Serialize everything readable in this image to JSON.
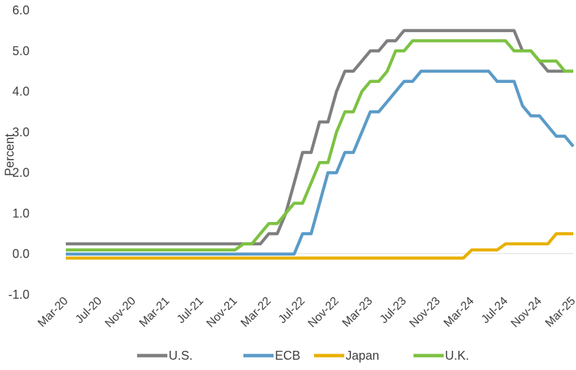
{
  "chart_data": {
    "type": "line",
    "title": "",
    "xlabel": "",
    "ylabel": "Percent",
    "ylim": [
      -1.0,
      6.0
    ],
    "yticks": [
      "-1.0",
      "0.0",
      "1.0",
      "2.0",
      "3.0",
      "4.0",
      "5.0",
      "6.0"
    ],
    "xlim": [
      "2020-03",
      "2025-03"
    ],
    "xticks": [
      "Mar-20",
      "Jul-20",
      "Nov-20",
      "Mar-21",
      "Jul-21",
      "Nov-21",
      "Mar-22",
      "Jul-22",
      "Nov-22",
      "Mar-23",
      "Jul-23",
      "Nov-23",
      "Mar-24",
      "Jul-24",
      "Nov-24",
      "Mar-25"
    ],
    "grid": false,
    "legend_position": "bottom",
    "series": [
      {
        "name": "U.S.",
        "color": "#7f7f7f",
        "points": [
          [
            "2020-03",
            0.25
          ],
          [
            "2022-02",
            0.25
          ],
          [
            "2022-03",
            0.5
          ],
          [
            "2022-04",
            0.5
          ],
          [
            "2022-05",
            1.0
          ],
          [
            "2022-06",
            1.75
          ],
          [
            "2022-07",
            2.5
          ],
          [
            "2022-08",
            2.5
          ],
          [
            "2022-09",
            3.25
          ],
          [
            "2022-10",
            3.25
          ],
          [
            "2022-11",
            4.0
          ],
          [
            "2022-12",
            4.5
          ],
          [
            "2023-01",
            4.5
          ],
          [
            "2023-02",
            4.75
          ],
          [
            "2023-03",
            5.0
          ],
          [
            "2023-04",
            5.0
          ],
          [
            "2023-05",
            5.25
          ],
          [
            "2023-06",
            5.25
          ],
          [
            "2023-07",
            5.5
          ],
          [
            "2024-08",
            5.5
          ],
          [
            "2024-09",
            5.0
          ],
          [
            "2024-10",
            5.0
          ],
          [
            "2024-11",
            4.75
          ],
          [
            "2024-12",
            4.5
          ],
          [
            "2025-03",
            4.5
          ]
        ]
      },
      {
        "name": "ECB",
        "color": "#5b9bc8",
        "points": [
          [
            "2020-03",
            0.0
          ],
          [
            "2022-06",
            0.0
          ],
          [
            "2022-07",
            0.5
          ],
          [
            "2022-08",
            0.5
          ],
          [
            "2022-09",
            1.25
          ],
          [
            "2022-10",
            2.0
          ],
          [
            "2022-11",
            2.0
          ],
          [
            "2022-12",
            2.5
          ],
          [
            "2023-01",
            2.5
          ],
          [
            "2023-02",
            3.0
          ],
          [
            "2023-03",
            3.5
          ],
          [
            "2023-04",
            3.5
          ],
          [
            "2023-05",
            3.75
          ],
          [
            "2023-06",
            4.0
          ],
          [
            "2023-07",
            4.25
          ],
          [
            "2023-08",
            4.25
          ],
          [
            "2023-09",
            4.5
          ],
          [
            "2024-05",
            4.5
          ],
          [
            "2024-06",
            4.25
          ],
          [
            "2024-08",
            4.25
          ],
          [
            "2024-09",
            3.65
          ],
          [
            "2024-10",
            3.4
          ],
          [
            "2024-11",
            3.4
          ],
          [
            "2024-12",
            3.15
          ],
          [
            "2025-01",
            2.9
          ],
          [
            "2025-02",
            2.9
          ],
          [
            "2025-03",
            2.65
          ]
        ]
      },
      {
        "name": "Japan",
        "color": "#e8b000",
        "points": [
          [
            "2020-03",
            -0.1
          ],
          [
            "2024-02",
            -0.1
          ],
          [
            "2024-03",
            0.1
          ],
          [
            "2024-06",
            0.1
          ],
          [
            "2024-07",
            0.25
          ],
          [
            "2024-12",
            0.25
          ],
          [
            "2025-01",
            0.5
          ],
          [
            "2025-03",
            0.5
          ]
        ]
      },
      {
        "name": "U.K.",
        "color": "#7dc242",
        "points": [
          [
            "2020-03",
            0.1
          ],
          [
            "2021-11",
            0.1
          ],
          [
            "2021-12",
            0.25
          ],
          [
            "2022-01",
            0.25
          ],
          [
            "2022-02",
            0.5
          ],
          [
            "2022-03",
            0.75
          ],
          [
            "2022-04",
            0.75
          ],
          [
            "2022-05",
            1.0
          ],
          [
            "2022-06",
            1.25
          ],
          [
            "2022-07",
            1.25
          ],
          [
            "2022-08",
            1.75
          ],
          [
            "2022-09",
            2.25
          ],
          [
            "2022-10",
            2.25
          ],
          [
            "2022-11",
            3.0
          ],
          [
            "2022-12",
            3.5
          ],
          [
            "2023-01",
            3.5
          ],
          [
            "2023-02",
            4.0
          ],
          [
            "2023-03",
            4.25
          ],
          [
            "2023-04",
            4.25
          ],
          [
            "2023-05",
            4.5
          ],
          [
            "2023-06",
            5.0
          ],
          [
            "2023-07",
            5.0
          ],
          [
            "2023-08",
            5.25
          ],
          [
            "2024-07",
            5.25
          ],
          [
            "2024-08",
            5.0
          ],
          [
            "2024-10",
            5.0
          ],
          [
            "2024-11",
            4.75
          ],
          [
            "2025-01",
            4.75
          ],
          [
            "2025-02",
            4.5
          ],
          [
            "2025-03",
            4.5
          ]
        ]
      }
    ]
  }
}
